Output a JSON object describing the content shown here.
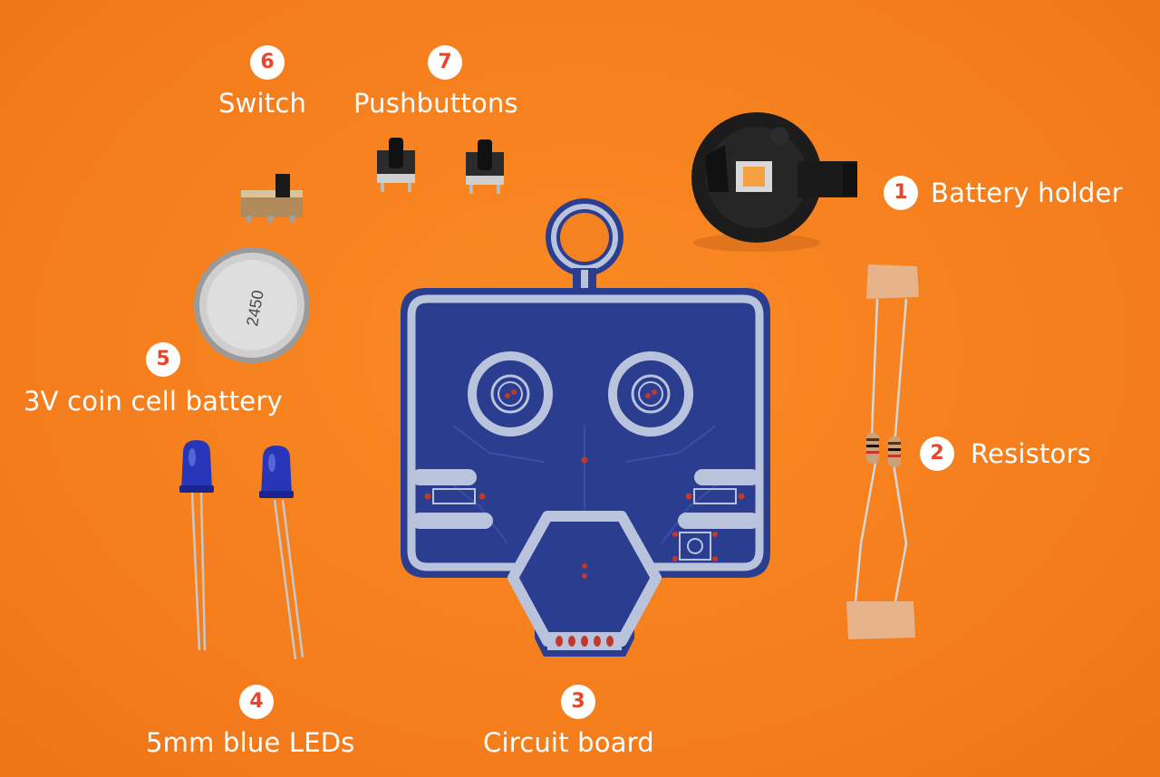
{
  "colors": {
    "background": "#f58220",
    "badge_fill": "#ffffff",
    "badge_number": "#e8452a",
    "label_text": "#ffffff",
    "pcb_blue": "#2a3d8f",
    "pcb_silver": "#b9c4dc"
  },
  "battery_marking": "2450",
  "components": [
    {
      "number": "1",
      "label": "Battery holder"
    },
    {
      "number": "2",
      "label": "Resistors"
    },
    {
      "number": "3",
      "label": "Circuit board"
    },
    {
      "number": "4",
      "label": "5mm blue LEDs"
    },
    {
      "number": "5",
      "label": "3V coin cell battery"
    },
    {
      "number": "6",
      "label": "Switch"
    },
    {
      "number": "7",
      "label": "Pushbuttons"
    }
  ]
}
